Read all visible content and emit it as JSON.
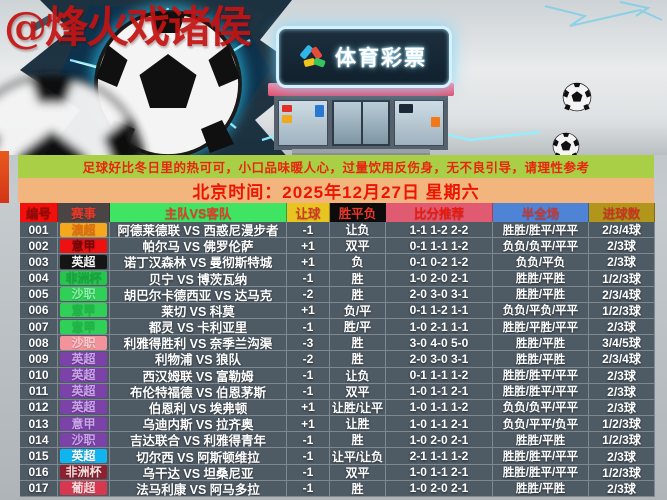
{
  "watermark": "@烽火戏诸侯",
  "hero": {
    "store_sign": "体育彩票",
    "decor": [
      "soccer-ball-burst",
      "electric-glow",
      "storefront",
      "soccer-balls-right"
    ]
  },
  "notice": {
    "text": "足球好比冬日里的热可可，小口品味暖人心，过量饮用反伤身，无不良引导，请理性参考",
    "bg": "#a8cf45",
    "fg": "#e8250f"
  },
  "time_banner": {
    "text": "北京时间：2025年12月27日 星期六",
    "bg": "#f2b57e",
    "fg": "#ee1500"
  },
  "table": {
    "headers": [
      {
        "label": "编号",
        "bg": "#f2100c",
        "fg": "#8f0a06"
      },
      {
        "label": "赛事",
        "bg": "#4a4444",
        "fg": "#e8392a"
      },
      {
        "label": "主队VS客队",
        "bg": "#3fe463",
        "fg": "#e8392a"
      },
      {
        "label": "让球",
        "bg": "#e8c420",
        "fg": "#d2362a"
      },
      {
        "label": "胜平负",
        "bg": "#0c0c0c",
        "fg": "#e8392a"
      },
      {
        "label": "比分推荐",
        "bg": "#e05a72",
        "fg": "#ee1808"
      },
      {
        "label": "半全场",
        "bg": "#4f83d6",
        "fg": "#d2362a"
      },
      {
        "label": "进球数",
        "bg": "#b2961c",
        "fg": "#cc3322"
      }
    ],
    "rows": [
      {
        "id": "001",
        "league": "澳超",
        "badge_bg": "#f5a81e",
        "badge_fg": "#e06c10",
        "match": "阿德莱德联 VS 西惑尼漫步者",
        "handicap": "-1",
        "wdl": "让负",
        "scores": "1-1 1-2 2-2",
        "half_full": "胜胜/胜平/平平",
        "goals": "2/3/4球"
      },
      {
        "id": "002",
        "league": "意甲",
        "badge_bg": "#ee1111",
        "badge_fg": "#6e0808",
        "match": "帕尔马 VS 佛罗伦萨",
        "handicap": "+1",
        "wdl": "双平",
        "scores": "0-1 1-1 1-2",
        "half_full": "负负/负平/平平",
        "goals": "2/3球"
      },
      {
        "id": "003",
        "league": "英超",
        "badge_bg": "#151515",
        "badge_fg": "#f5f5f5",
        "match": "诺丁汉森林 VS 曼彻斯特城",
        "handicap": "+1",
        "wdl": "负",
        "scores": "0-1 0-2 1-2",
        "half_full": "负负/平负",
        "goals": "2/3球"
      },
      {
        "id": "004",
        "league": "非洲杯",
        "badge_bg": "#28c450",
        "badge_fg": "#18a43c",
        "match": "贝宁 VS 博茨瓦纳",
        "handicap": "-1",
        "wdl": "胜",
        "scores": "1-0 2-0 2-1",
        "half_full": "胜胜/平胜",
        "goals": "1/2/3球"
      },
      {
        "id": "005",
        "league": "沙职",
        "badge_bg": "#30d058",
        "badge_fg": "#8cf2aa",
        "match": "胡巴尔卡德西亚 VS 达马克",
        "handicap": "-2",
        "wdl": "胜",
        "scores": "2-0 3-0 3-1",
        "half_full": "胜胜/平胜",
        "goals": "2/3/4球"
      },
      {
        "id": "006",
        "league": "意甲",
        "badge_bg": "#30d058",
        "badge_fg": "#20b848",
        "match": "莱切 VS 科莫",
        "handicap": "+1",
        "wdl": "负/平",
        "scores": "0-1 1-2 1-1",
        "half_full": "负负/平负/平平",
        "goals": "1/2/3球"
      },
      {
        "id": "007",
        "league": "意甲",
        "badge_bg": "#30d058",
        "badge_fg": "#20b848",
        "match": "都灵 VS 卡利亚里",
        "handicap": "-1",
        "wdl": "胜/平",
        "scores": "1-0 2-1 1-1",
        "half_full": "胜胜/平胜/平平",
        "goals": "2/3球"
      },
      {
        "id": "008",
        "league": "沙职",
        "badge_bg": "#f2939b",
        "badge_fg": "#f9ccd0",
        "match": "利雅得胜利 VS 奈季兰沟渠",
        "handicap": "-3",
        "wdl": "胜",
        "scores": "3-0 4-0 5-0",
        "half_full": "胜胜/平胜",
        "goals": "3/4/5球"
      },
      {
        "id": "009",
        "league": "英超",
        "badge_bg": "#7b42a8",
        "badge_fg": "#caa6e8",
        "match": "利物浦 VS 狼队",
        "handicap": "-2",
        "wdl": "胜",
        "scores": "2-0 3-0 3-1",
        "half_full": "胜胜/平胜",
        "goals": "2/3/4球"
      },
      {
        "id": "010",
        "league": "英超",
        "badge_bg": "#7b42a8",
        "badge_fg": "#caa6e8",
        "match": "西汉姆联 VS 富勒姆",
        "handicap": "-1",
        "wdl": "让负",
        "scores": "0-1 1-1 1-2",
        "half_full": "胜胜/胜平/平平",
        "goals": "2/3球"
      },
      {
        "id": "011",
        "league": "英超",
        "badge_bg": "#7b42a8",
        "badge_fg": "#caa6e8",
        "match": "布伦特福德 VS 伯恩茅斯",
        "handicap": "-1",
        "wdl": "双平",
        "scores": "1-0 1-1 2-1",
        "half_full": "胜胜/胜平/平平",
        "goals": "2/3球"
      },
      {
        "id": "012",
        "league": "英超",
        "badge_bg": "#7b42a8",
        "badge_fg": "#caa6e8",
        "match": "伯恩利 VS 埃弗顿",
        "handicap": "+1",
        "wdl": "让胜/让平",
        "scores": "1-0 1-1 1-2",
        "half_full": "负负/负平/平平",
        "goals": "2/3球"
      },
      {
        "id": "013",
        "league": "意甲",
        "badge_bg": "#7b42a8",
        "badge_fg": "#caa6e8",
        "match": "乌迪内斯 VS 拉齐奥",
        "handicap": "+1",
        "wdl": "让胜",
        "scores": "1-0 1-1 2-1",
        "half_full": "负负/平平/负平",
        "goals": "1/2/3球"
      },
      {
        "id": "014",
        "league": "沙职",
        "badge_bg": "#7b42a8",
        "badge_fg": "#caa6e8",
        "match": "吉达联合 VS 利雅得青年",
        "handicap": "-1",
        "wdl": "胜",
        "scores": "1-0 2-0 2-1",
        "half_full": "胜胜/平胜",
        "goals": "1/2/3球"
      },
      {
        "id": "015",
        "league": "英超",
        "badge_bg": "#12b4ee",
        "badge_fg": "#ffffff",
        "match": "切尔西 VS 阿斯顿维拉",
        "handicap": "-1",
        "wdl": "让平/让负",
        "scores": "2-1 1-1 1-2",
        "half_full": "胜胜/胜平/平平",
        "goals": "2/3球"
      },
      {
        "id": "016",
        "league": "非洲杯",
        "badge_bg": "#8e2130",
        "badge_fg": "#f0e0e0",
        "match": "乌干达 VS 坦桑尼亚",
        "handicap": "-1",
        "wdl": "双平",
        "scores": "1-0 1-1 2-1",
        "half_full": "胜胜/胜平/平平",
        "goals": "1/2/3球"
      },
      {
        "id": "017",
        "league": "葡超",
        "badge_bg": "#d63850",
        "badge_fg": "#f2d8da",
        "match": "法马利康 VS 阿马多拉",
        "handicap": "-1",
        "wdl": "胜",
        "scores": "1-0 2-0 2-1",
        "half_full": "胜胜/平胜",
        "goals": "2/3球"
      }
    ]
  }
}
